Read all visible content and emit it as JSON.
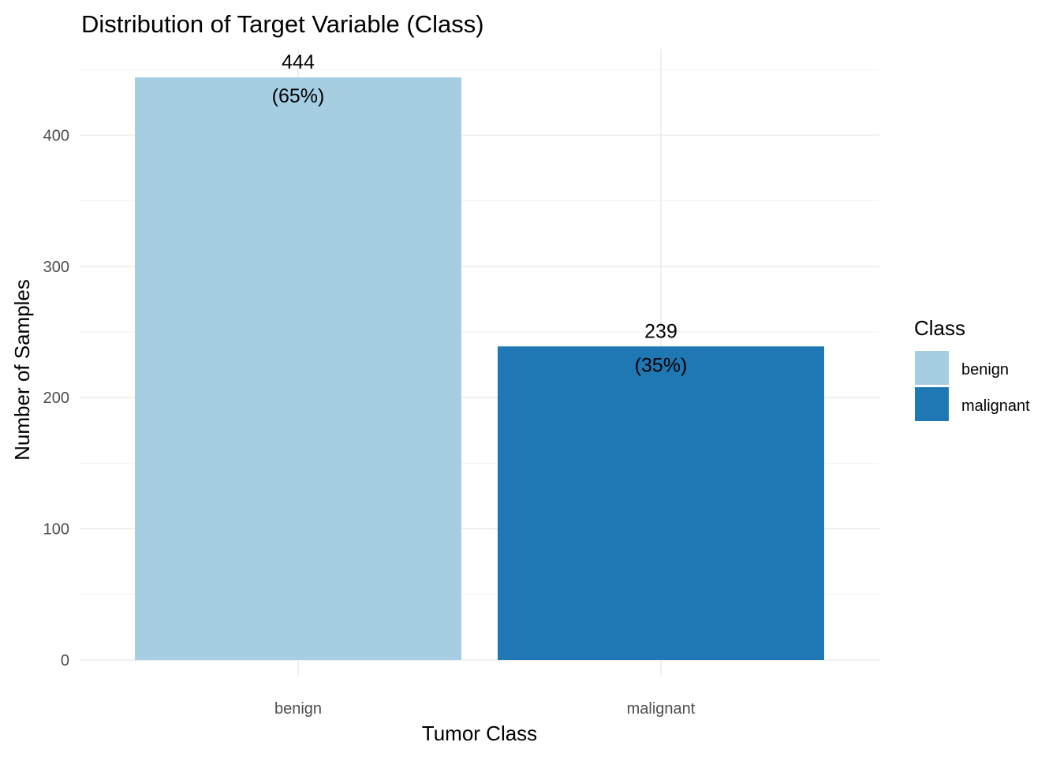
{
  "chart_data": {
    "type": "bar",
    "title": "Distribution of Target Variable (Class)",
    "xlabel": "Tumor Class",
    "ylabel": "Number of Samples",
    "categories": [
      "benign",
      "malignant"
    ],
    "values": [
      444,
      239
    ],
    "percent_labels": [
      "(65%)",
      "(35%)"
    ],
    "colors": [
      "#a6cee3",
      "#1f78b4"
    ],
    "ylim": [
      0,
      450
    ],
    "yticks": [
      0,
      100,
      200,
      300,
      400
    ],
    "grid": true,
    "legend": {
      "title": "Class",
      "position": "right",
      "entries": [
        "benign",
        "malignant"
      ]
    }
  }
}
